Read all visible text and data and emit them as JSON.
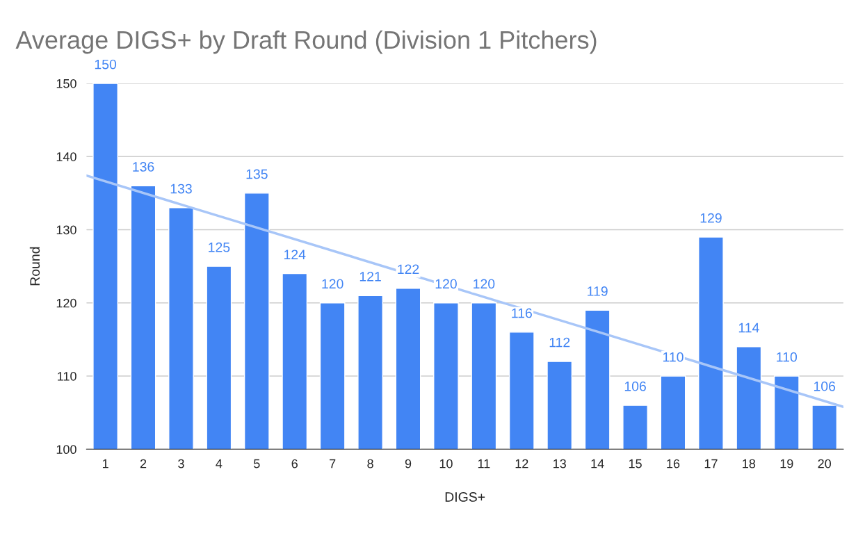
{
  "chart_data": {
    "type": "bar",
    "title": "Average DIGS+ by Draft Round (Division 1 Pitchers)",
    "xlabel": "DIGS+",
    "ylabel": "Round",
    "x": [
      1,
      2,
      3,
      4,
      5,
      6,
      7,
      8,
      9,
      10,
      11,
      12,
      13,
      14,
      15,
      16,
      17,
      18,
      19,
      20
    ],
    "xlim": [
      0.5,
      20.5
    ],
    "xticks": [
      1,
      2,
      3,
      4,
      5,
      6,
      7,
      8,
      9,
      10,
      11,
      12,
      13,
      14,
      15,
      16,
      17,
      18,
      19,
      20
    ],
    "ylim": [
      100,
      150
    ],
    "yticks": [
      100,
      110,
      120,
      130,
      140,
      150
    ],
    "grid": "y",
    "legend": false,
    "series": [
      {
        "color": "#4285f4",
        "data_labels": true,
        "values": [
          150,
          136,
          133,
          125,
          135,
          124,
          120,
          121,
          122,
          120,
          120,
          116,
          112,
          119,
          106,
          110,
          129,
          114,
          110,
          106
        ]
      },
      {
        "type": "line",
        "color": "#a8c6f8",
        "x": [
          0.5,
          20.5
        ],
        "values": [
          137.4,
          105.8
        ]
      }
    ]
  }
}
